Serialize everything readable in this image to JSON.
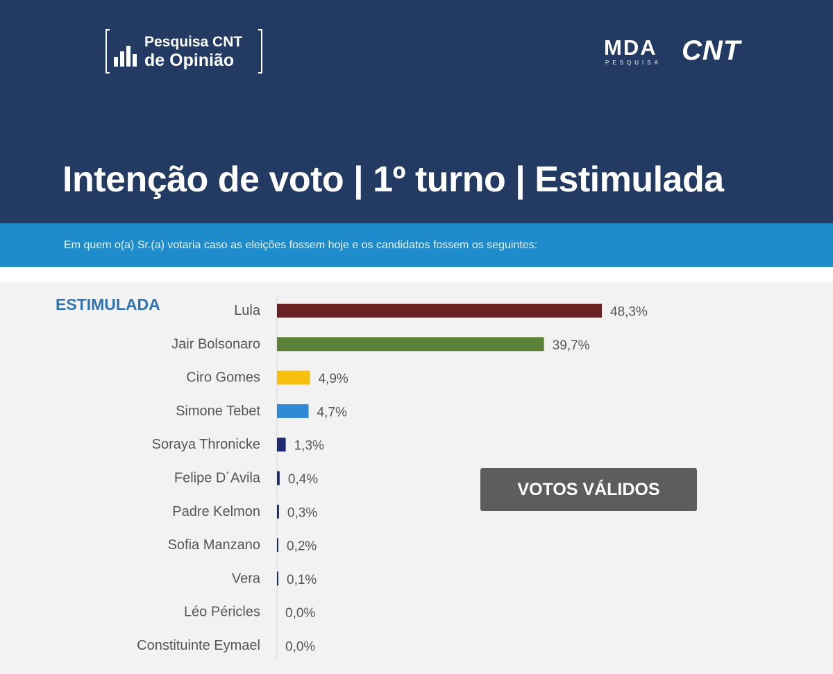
{
  "header": {
    "logo_line1": "Pesquisa CNT",
    "logo_line2": "de Opinião",
    "mda_logo": "MDA",
    "mda_sub": "PESQUISA",
    "cnt_logo": "CNT",
    "title": "Intenção de voto | 1º turno | Estimulada",
    "subtitle": "Em quem o(a) Sr.(a) votaria caso as eleições fossem hoje e os candidatos fossem os seguintes:",
    "background_color": "#233b62",
    "band_color": "#1e8ccb"
  },
  "chart_data": {
    "type": "bar",
    "orientation": "horizontal",
    "title": "ESTIMULADA",
    "categories": [
      "Lula",
      "Jair Bolsonaro",
      "Ciro Gomes",
      "Simone Tebet",
      "Soraya Thronicke",
      "Felipe D´Avila",
      "Padre Kelmon",
      "Sofia Manzano",
      "Vera",
      "Léo Péricles",
      "Constituinte Eymael"
    ],
    "values": [
      48.3,
      39.7,
      4.9,
      4.7,
      1.3,
      0.4,
      0.3,
      0.2,
      0.1,
      0.0,
      0.0
    ],
    "value_labels": [
      "48,3%",
      "39,7%",
      "4,9%",
      "4,7%",
      "1,3%",
      "0,4%",
      "0,3%",
      "0,2%",
      "0,1%",
      "0,0%",
      "0,0%"
    ],
    "colors": [
      "#6b2222",
      "#5b8236",
      "#f6c00c",
      "#2f8ad6",
      "#1f2b72",
      "#1f2b72",
      "#1f2b72",
      "#1f2b72",
      "#1f2b72",
      "#1f2b72",
      "#1f2b72"
    ],
    "xlim": [
      0,
      48.3
    ],
    "xlabel": "",
    "ylabel": "",
    "grid": false,
    "annotation": "VOTOS VÁLIDOS"
  }
}
